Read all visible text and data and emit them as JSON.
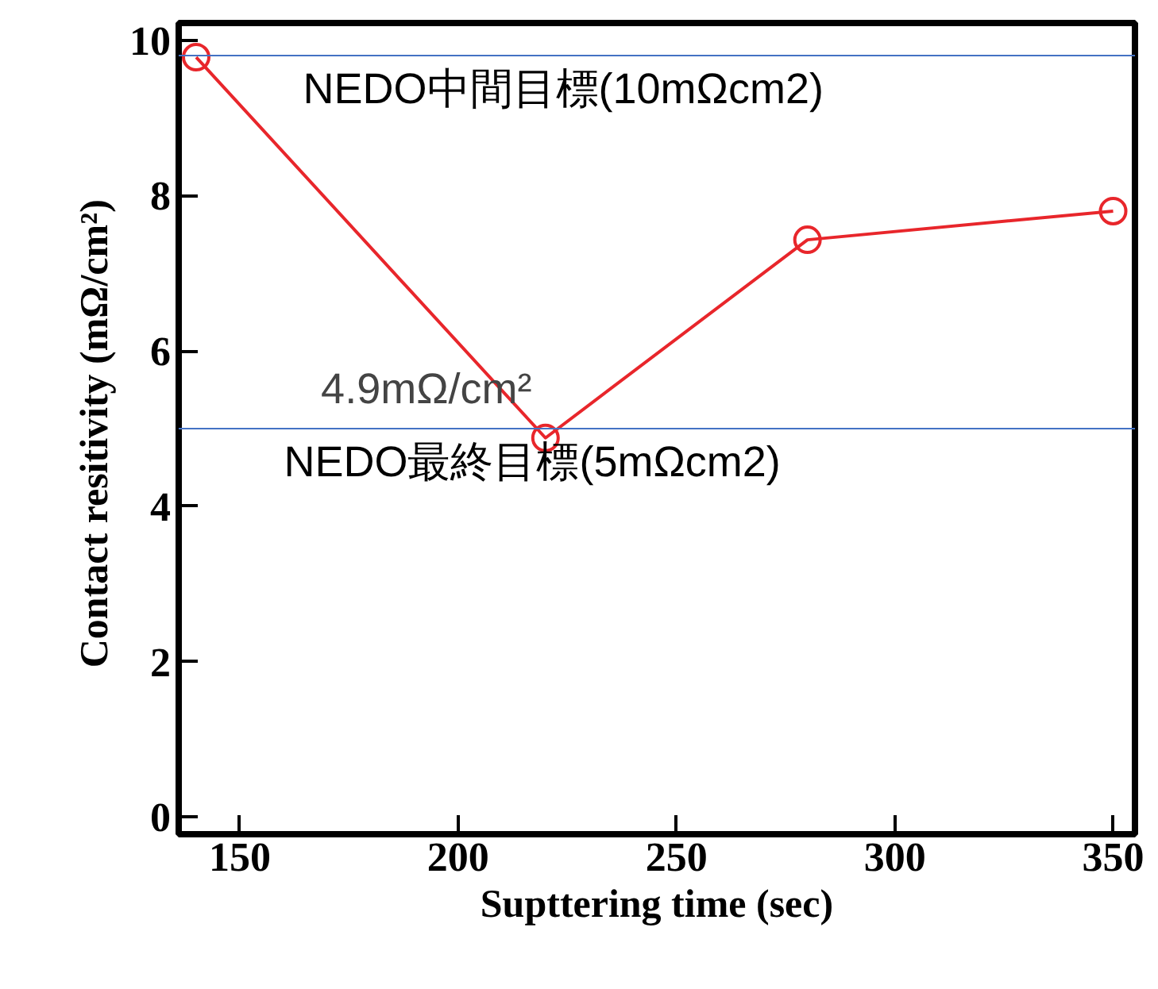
{
  "chart_data": {
    "type": "line",
    "xlabel": "Supttering time (sec)",
    "ylabel": "Contact resitivity  (mΩ/cm²)",
    "x": [
      140,
      220,
      280,
      350
    ],
    "series": [
      {
        "color": "#e8262b",
        "values": [
          9.78,
          4.88,
          7.43,
          7.8
        ]
      }
    ],
    "marker": "circle",
    "line_style": "solid",
    "xlim": [
      136,
      355
    ],
    "xticks": [
      150,
      200,
      250,
      300,
      350
    ],
    "ylim": [
      -0.22,
      10.22
    ],
    "yticks": [
      0,
      2,
      4,
      6,
      8,
      10
    ],
    "grid": false,
    "ref_lines": [
      {
        "axis": "y",
        "value": 9.8,
        "label": "NEDO中間目標(10mΩcm2)",
        "color": "#4472c4"
      },
      {
        "axis": "y",
        "value": 5,
        "label": "NEDO最終目標(5mΩcm2)",
        "color": "#4472c4"
      }
    ],
    "annotations": [
      {
        "text": "4.9mΩ/cm²",
        "x": 220,
        "y": 4.88
      }
    ]
  }
}
